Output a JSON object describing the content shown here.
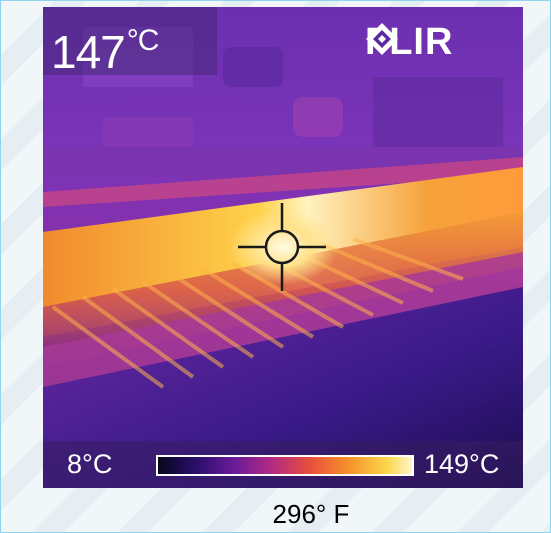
{
  "camera": {
    "temperature_reading": "147°C",
    "logo_text": "FLIR",
    "scale_min": "8°C",
    "scale_max": "149°C",
    "palette": "iron",
    "crosshair_icon": "crosshair-icon"
  },
  "caption": {
    "fahrenheit": "296° F"
  },
  "colors": {
    "frame_border": "#8fd3ec",
    "background": "#f1f6f9",
    "cold": "#3b1d8a",
    "hot": "#fff6c8"
  }
}
